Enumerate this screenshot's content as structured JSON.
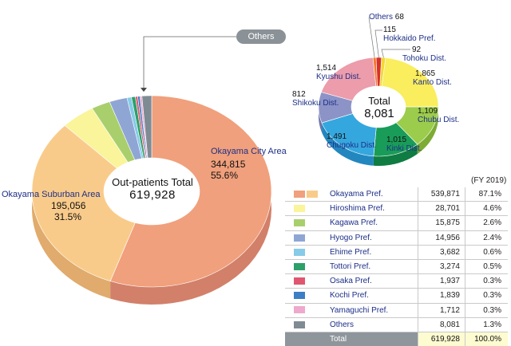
{
  "chart_data": [
    {
      "type": "pie",
      "title": "Out-patients Total",
      "total": "619,928",
      "slices": [
        {
          "name": "Okayama City Area",
          "value": "344,815",
          "percent": "55.6%",
          "v": 344815,
          "color": "#f0a07c",
          "side": "#d2806a"
        },
        {
          "name": "Okayama Suburban Area",
          "value": "195,056",
          "percent": "31.5%",
          "v": 195056,
          "color": "#f9cb8a",
          "side": "#e0ab6c"
        },
        {
          "name": "Hiroshima Pref.",
          "v": 28701,
          "color": "#faf49a",
          "side": "#dcd57a"
        },
        {
          "name": "Kagawa Pref.",
          "v": 15875,
          "color": "#a9cf6d",
          "side": "#8ab255"
        },
        {
          "name": "Hyogo Pref.",
          "v": 14956,
          "color": "#8fa6d4",
          "side": "#7188b6"
        },
        {
          "name": "Ehime Pref.",
          "v": 3682,
          "color": "#86cbe7",
          "side": "#69aecb"
        },
        {
          "name": "Tottori Pref.",
          "v": 3274,
          "color": "#2ba069",
          "side": "#1f8452"
        },
        {
          "name": "Osaka Pref.",
          "v": 1937,
          "color": "#e05670",
          "side": "#c24058"
        },
        {
          "name": "Kochi Pref.",
          "v": 1839,
          "color": "#3d7ec5",
          "side": "#2e65a4"
        },
        {
          "name": "Yamaguchi Pref.",
          "v": 1712,
          "color": "#eea9cd",
          "side": "#d08cae"
        },
        {
          "name": "Others",
          "v": 8081,
          "color": "#7f8b93",
          "side": "#5f6b73"
        }
      ],
      "callout": "Others"
    },
    {
      "type": "pie",
      "title": "Total",
      "total": "8,081",
      "slices": [
        {
          "name": "Kanto Dist.",
          "value": "1,865",
          "v": 1865,
          "color": "#faed5e",
          "side": "#d8cb44"
        },
        {
          "name": "Chubu Dist.",
          "value": "1,109",
          "v": 1109,
          "color": "#9ccc4b",
          "side": "#7cac35"
        },
        {
          "name": "Kinki Dist.",
          "value": "1,015",
          "v": 1015,
          "color": "#199c58",
          "side": "#0f7c42"
        },
        {
          "name": "Chugoku Dist.",
          "value": "1,491",
          "v": 1491,
          "color": "#35a7df",
          "side": "#2387bf"
        },
        {
          "name": "Shikoku Dist.",
          "value": "812",
          "v": 812,
          "color": "#8c93c7",
          "side": "#6e75a9"
        },
        {
          "name": "Kyushu Dist.",
          "value": "1,514",
          "v": 1514,
          "color": "#ec9cab",
          "side": "#cc7e8d"
        },
        {
          "name": "Others",
          "value": "68",
          "v": 68,
          "color": "#f37a2f",
          "side": "#d35e1a"
        },
        {
          "name": "Hokkaido Pref.",
          "value": "115",
          "v": 115,
          "color": "#d8312a",
          "side": "#b81e18"
        },
        {
          "name": "Tohoku Dist.",
          "value": "92",
          "v": 92,
          "color": "#f2da35",
          "side": "#d2ba20"
        }
      ]
    }
  ],
  "table": {
    "year_label": "(FY 2019)",
    "rows": [
      {
        "name": "Okayama Pref.",
        "value": "539,871",
        "percent": "87.1%",
        "colors": [
          "#f0a07c",
          "#f9cb8a"
        ]
      },
      {
        "name": "Hiroshima Pref.",
        "value": "28,701",
        "percent": "4.6%",
        "colors": [
          "#faf49a"
        ]
      },
      {
        "name": "Kagawa Pref.",
        "value": "15,875",
        "percent": "2.6%",
        "colors": [
          "#a9cf6d"
        ]
      },
      {
        "name": "Hyogo Pref.",
        "value": "14,956",
        "percent": "2.4%",
        "colors": [
          "#8fa6d4"
        ]
      },
      {
        "name": "Ehime Pref.",
        "value": "3,682",
        "percent": "0.6%",
        "colors": [
          "#86cbe7"
        ]
      },
      {
        "name": "Tottori Pref.",
        "value": "3,274",
        "percent": "0.5%",
        "colors": [
          "#2ba069"
        ]
      },
      {
        "name": "Osaka Pref.",
        "value": "1,937",
        "percent": "0.3%",
        "colors": [
          "#e05670"
        ]
      },
      {
        "name": "Kochi Pref.",
        "value": "1,839",
        "percent": "0.3%",
        "colors": [
          "#3d7ec5"
        ]
      },
      {
        "name": "Yamaguchi Pref.",
        "value": "1,712",
        "percent": "0.3%",
        "colors": [
          "#eea9cd"
        ]
      },
      {
        "name": "Others",
        "value": "8,081",
        "percent": "1.3%",
        "colors": [
          "#7f8b93"
        ]
      }
    ],
    "total": {
      "name": "Total",
      "value": "619,928",
      "percent": "100.0%"
    }
  }
}
